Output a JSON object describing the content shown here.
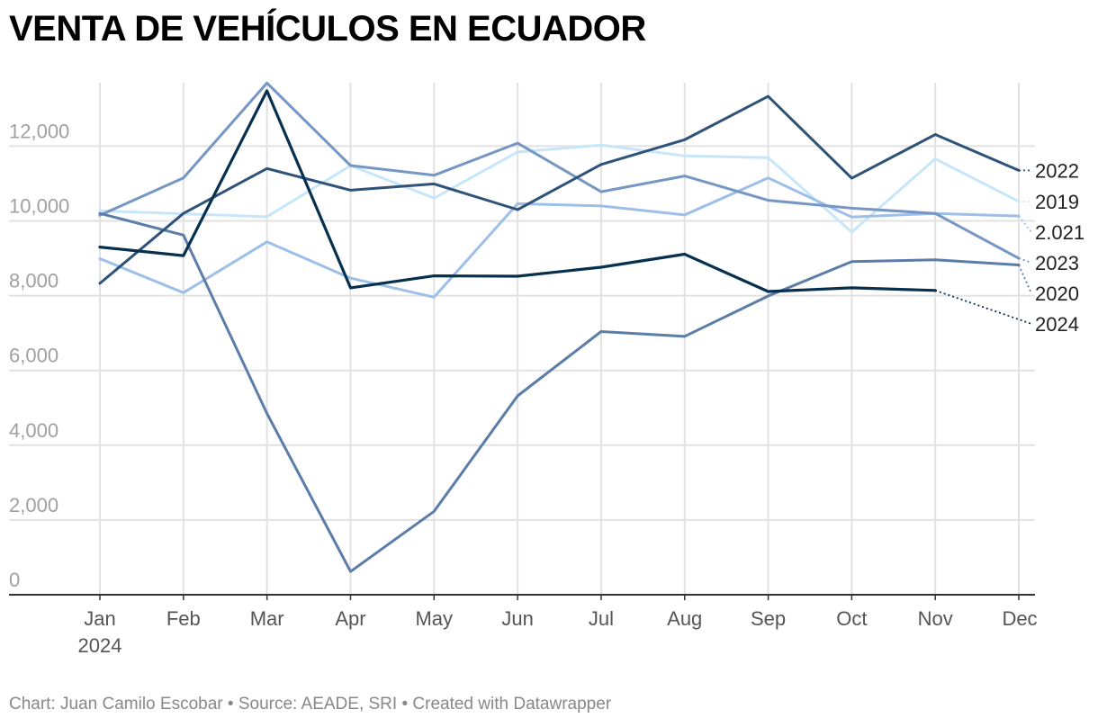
{
  "title": "VENTA DE VEHÍCULOS EN ECUADOR",
  "footer": {
    "chart_credit": "Chart: Juan Camilo Escobar",
    "source": "Source: AEADE, SRI",
    "created_with": "Created with Datawrapper",
    "separator": " • "
  },
  "colors": {
    "grid": "#e2e2e2",
    "axis": "#333333",
    "tick": "#a0a0a0",
    "month": "#555555"
  },
  "chart_data": {
    "type": "line",
    "title": "VENTA DE VEHÍCULOS EN ECUADOR",
    "xlabel": "",
    "ylabel": "",
    "x": [
      "Jan",
      "Feb",
      "Mar",
      "Apr",
      "May",
      "Jun",
      "Jul",
      "Aug",
      "Sep",
      "Oct",
      "Nov",
      "Dec"
    ],
    "x_sublabel": "2024",
    "y_ticks": [
      {
        "value": 0,
        "label": "0"
      },
      {
        "value": 2000,
        "label": "2,000"
      },
      {
        "value": 4000,
        "label": "4,000"
      },
      {
        "value": 6000,
        "label": "6,000"
      },
      {
        "value": 8000,
        "label": "8,000"
      },
      {
        "value": 10000,
        "label": "10,000"
      },
      {
        "value": 12000,
        "label": "12,000"
      }
    ],
    "ylim": [
      0,
      13600
    ],
    "grid": true,
    "series": [
      {
        "name": "2019",
        "label": "2019",
        "color": "#c8e6f9",
        "width": 3,
        "values": [
          10270,
          10190,
          10110,
          11480,
          10610,
          11840,
          12030,
          11740,
          11690,
          9700,
          11660,
          10520
        ]
      },
      {
        "name": "2.021",
        "label": "2.021",
        "color": "#9dbfe8",
        "width": 3,
        "values": [
          8990,
          8080,
          9440,
          8470,
          7960,
          10460,
          10400,
          10160,
          11150,
          10100,
          10200,
          10130
        ]
      },
      {
        "name": "2023",
        "label": "2023",
        "color": "#7696c4",
        "width": 3,
        "values": [
          10150,
          11150,
          13690,
          11480,
          11220,
          12080,
          10780,
          11200,
          10550,
          10340,
          10200,
          9000
        ]
      },
      {
        "name": "2020",
        "label": "2020",
        "color": "#5b7da8",
        "width": 3,
        "values": [
          10200,
          9620,
          4850,
          620,
          2230,
          5320,
          7040,
          6910,
          7990,
          8910,
          8960,
          8820
        ]
      },
      {
        "name": "2022",
        "label": "2022",
        "color": "#2f5378",
        "width": 3,
        "values": [
          8330,
          10200,
          11400,
          10820,
          10990,
          10300,
          11510,
          12170,
          13330,
          11140,
          12310,
          11350
        ]
      },
      {
        "name": "2024",
        "label": "2024",
        "color": "#07304f",
        "width": 3.2,
        "values": [
          9300,
          9070,
          13480,
          8210,
          8530,
          8520,
          8760,
          9110,
          8110,
          8210,
          8140,
          null
        ]
      }
    ]
  }
}
